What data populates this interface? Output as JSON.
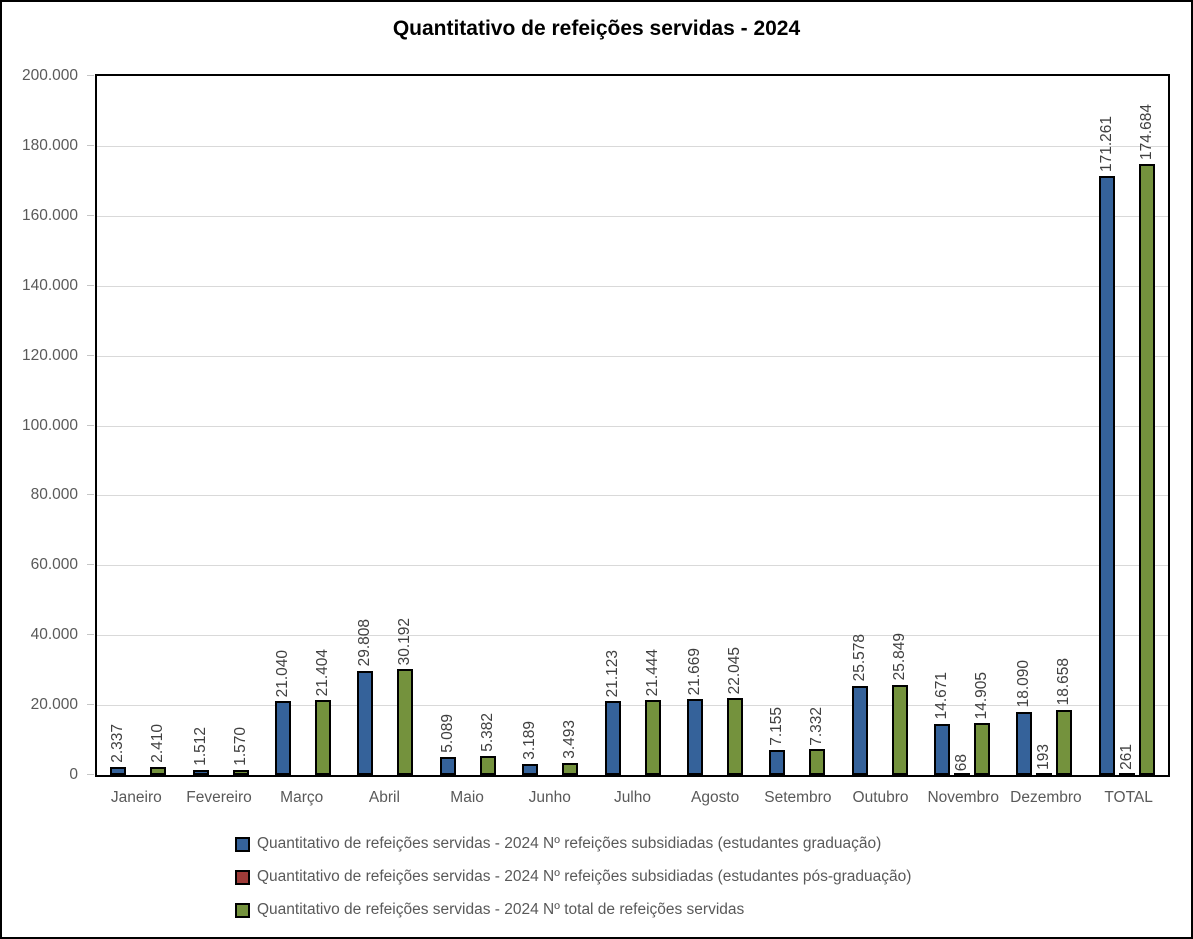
{
  "chart_data": {
    "type": "bar",
    "title": "Quantitativo de refeições servidas - 2024",
    "categories": [
      "Janeiro",
      "Fevereiro",
      "Março",
      "Abril",
      "Maio",
      "Junho",
      "Julho",
      "Agosto",
      "Setembro",
      "Outubro",
      "Novembro",
      "Dezembro",
      "TOTAL"
    ],
    "series": [
      {
        "key": "graduacao",
        "name": "Quantitativo de refeições servidas - 2024 Nº refeições subsidiadas (estudantes graduação)",
        "color": "#35629A",
        "values": [
          2337,
          1512,
          21040,
          29808,
          5089,
          3189,
          21123,
          21669,
          7155,
          25578,
          14671,
          18090,
          171261
        ],
        "labels": [
          "2.337",
          "1.512",
          "21.040",
          "29.808",
          "5.089",
          "3.189",
          "21.123",
          "21.669",
          "7.155",
          "25.578",
          "14.671",
          "18.090",
          "171.261"
        ]
      },
      {
        "key": "pos-graduacao",
        "name": "Quantitativo de refeições servidas - 2024 Nº refeições subsidiadas (estudantes pós-graduação)",
        "color": "#9E3B38",
        "values": [
          null,
          null,
          null,
          null,
          null,
          null,
          null,
          null,
          null,
          null,
          68,
          193,
          261
        ],
        "labels": [
          null,
          null,
          null,
          null,
          null,
          null,
          null,
          null,
          null,
          null,
          "68",
          "193",
          "261"
        ]
      },
      {
        "key": "total",
        "name": "Quantitativo de refeições servidas - 2024 Nº total de refeições servidas",
        "color": "#74923D",
        "values": [
          2410,
          1570,
          21404,
          30192,
          5382,
          3493,
          21444,
          22045,
          7332,
          25849,
          14905,
          18658,
          174684
        ],
        "labels": [
          "2.410",
          "1.570",
          "21.404",
          "30.192",
          "5.382",
          "3.493",
          "21.444",
          "22.045",
          "7.332",
          "25.849",
          "14.905",
          "18.658",
          "174.684"
        ]
      }
    ],
    "ylim": [
      0,
      200000
    ],
    "yticks": [
      {
        "value": 0,
        "label": "0"
      },
      {
        "value": 20000,
        "label": "20.000"
      },
      {
        "value": 40000,
        "label": "40.000"
      },
      {
        "value": 60000,
        "label": "60.000"
      },
      {
        "value": 80000,
        "label": "80.000"
      },
      {
        "value": 100000,
        "label": "100.000"
      },
      {
        "value": 120000,
        "label": "120.000"
      },
      {
        "value": 140000,
        "label": "140.000"
      },
      {
        "value": 160000,
        "label": "160.000"
      },
      {
        "value": 180000,
        "label": "180.000"
      },
      {
        "value": 200000,
        "label": "200.000"
      }
    ],
    "grid": true,
    "legend_position": "bottom",
    "colors": {
      "bar_outline": "#000000",
      "gridline": "#D9D9D9",
      "axis_text": "#595959",
      "data_label_text": "#404040",
      "frame": "#000000"
    }
  }
}
